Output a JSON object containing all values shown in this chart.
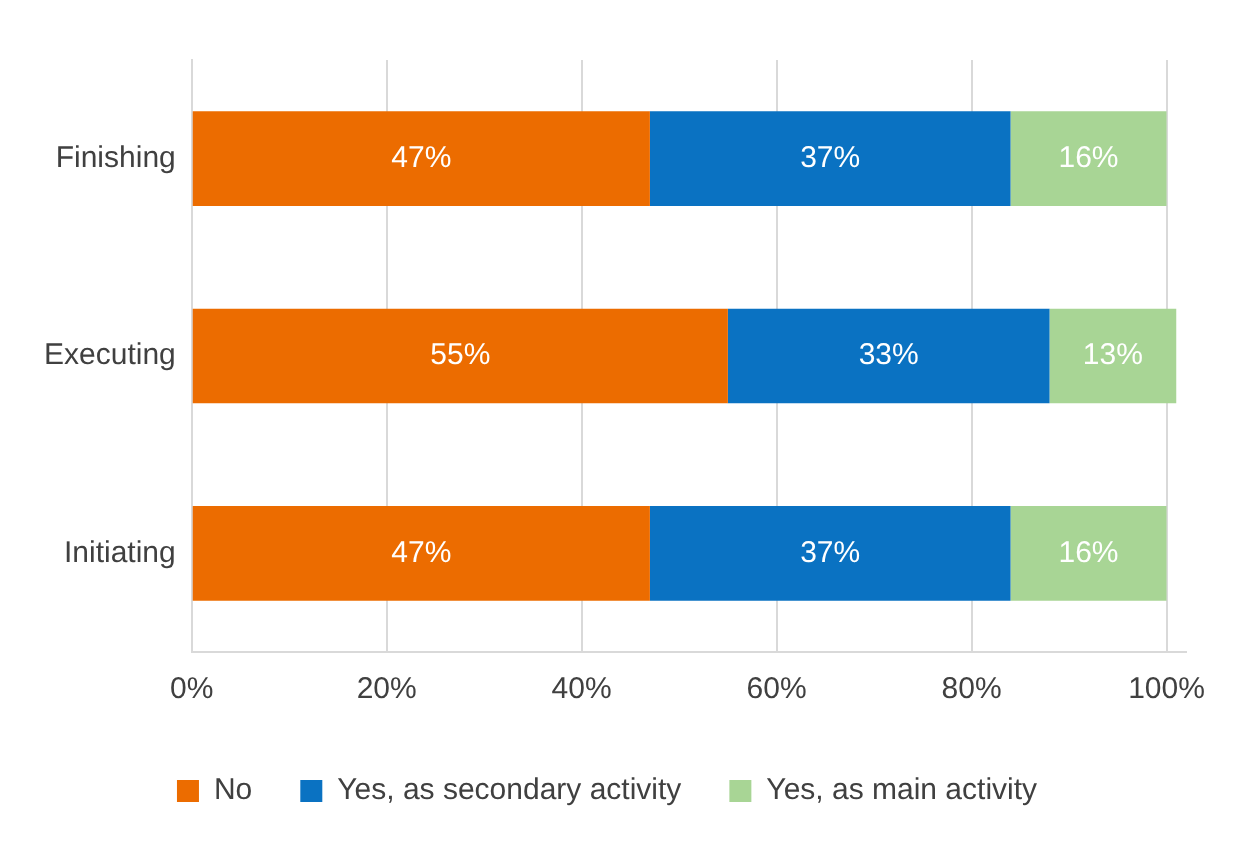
{
  "chart_data": {
    "type": "bar",
    "orientation": "horizontal",
    "stacked": true,
    "categories": [
      "Finishing",
      "Executing",
      "Initiating"
    ],
    "series": [
      {
        "name": "No",
        "color": "#ec6c00",
        "values": [
          47,
          55,
          47
        ],
        "value_labels": [
          "47%",
          "55%",
          "47%"
        ]
      },
      {
        "name": "Yes, as secondary activity",
        "color": "#0a72c2",
        "values": [
          37,
          33,
          37
        ],
        "value_labels": [
          "37%",
          "33%",
          "37%"
        ]
      },
      {
        "name": "Yes, as main activity",
        "color": "#a8d595",
        "values": [
          16,
          13,
          16
        ],
        "value_labels": [
          "16%",
          "13%",
          "16%"
        ]
      }
    ],
    "xlim": [
      0,
      102
    ],
    "xticks": [
      {
        "value": 0,
        "label": "0%"
      },
      {
        "value": 20,
        "label": "20%"
      },
      {
        "value": 40,
        "label": "40%"
      },
      {
        "value": 60,
        "label": "60%"
      },
      {
        "value": 80,
        "label": "80%"
      },
      {
        "value": 100,
        "label": "100%"
      }
    ],
    "grid": "x",
    "legend": "bottom"
  }
}
